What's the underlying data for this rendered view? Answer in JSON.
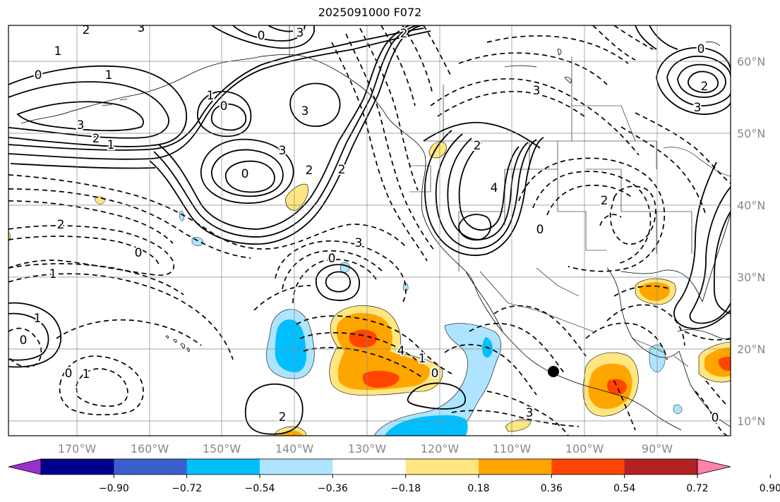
{
  "title": "2025091000 F072",
  "lon_labels": [
    "170°W",
    "160°W",
    "150°W",
    "140°W",
    "130°W",
    "120°W",
    "110°W",
    "100°W",
    "90°W"
  ],
  "lat_labels": [
    "60°N",
    "50°N",
    "40°N",
    "30°N",
    "20°N",
    "10°N"
  ],
  "colorbar": {
    "colors": [
      "#9b30d0",
      "#00008b",
      "#3a5fcd",
      "#00bfff",
      "#aee4ff",
      "#ffffff",
      "#ffe680",
      "#ffa500",
      "#ff4500",
      "#b22222",
      "#ff82ab"
    ],
    "tick_labels": [
      "−0.90",
      "−0.72",
      "−0.54",
      "−0.36",
      "−0.18",
      "0.18",
      "0.36",
      "0.54",
      "0.72",
      "0.90"
    ]
  },
  "contour_labels": [
    {
      "text": "3"
    },
    {
      "text": "2"
    },
    {
      "text": "1"
    },
    {
      "text": "0"
    },
    {
      "text": "1"
    },
    {
      "text": "3"
    },
    {
      "text": "2"
    },
    {
      "text": "0"
    },
    {
      "text": "3"
    },
    {
      "text": "3"
    },
    {
      "text": "2"
    },
    {
      "text": "2"
    },
    {
      "text": "1"
    },
    {
      "text": "0"
    },
    {
      "text": "1"
    },
    {
      "text": "2"
    },
    {
      "text": "1"
    },
    {
      "text": "0"
    },
    {
      "text": "1"
    },
    {
      "text": "0"
    },
    {
      "text": "0"
    },
    {
      "text": "1"
    },
    {
      "text": "0"
    },
    {
      "text": "3"
    },
    {
      "text": "3"
    },
    {
      "text": "4"
    },
    {
      "text": "0"
    },
    {
      "text": "2"
    },
    {
      "text": "3"
    },
    {
      "text": "0"
    },
    {
      "text": "3"
    },
    {
      "text": "1"
    },
    {
      "text": "0"
    },
    {
      "text": "2"
    },
    {
      "text": "4"
    },
    {
      "text": "3"
    },
    {
      "text": "2"
    },
    {
      "text": "0"
    },
    {
      "text": "2"
    },
    {
      "text": "0"
    },
    {
      "text": "2"
    }
  ]
}
